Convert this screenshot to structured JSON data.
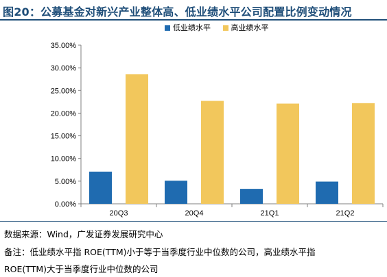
{
  "header": {
    "title": "图20：公募基金对新兴产业整体高、低业绩水平公司配置比例变动情况"
  },
  "colors": {
    "low": "#1f6bb0",
    "high": "#f2c75c",
    "title": "#1f4e79"
  },
  "chart_data": {
    "type": "bar",
    "title": "",
    "xlabel": "",
    "ylabel": "",
    "categories": [
      "20Q3",
      "20Q4",
      "21Q1",
      "21Q2"
    ],
    "series": [
      {
        "name": "低业绩水平",
        "values": [
          7.1,
          5.1,
          3.3,
          4.9
        ]
      },
      {
        "name": "高业绩水平",
        "values": [
          28.6,
          22.7,
          22.1,
          22.2
        ]
      }
    ],
    "ylim": [
      0,
      35
    ],
    "yticks": [
      "0.00%",
      "5.00%",
      "10.00%",
      "15.00%",
      "20.00%",
      "25.00%",
      "30.00%",
      "35.00%"
    ],
    "grid": false,
    "legend": "top"
  },
  "footer": {
    "source": "数据来源：Wind，广发证券发展研究中心",
    "note_line1": "备注：低业绩水平指 ROE(TTM)小于等于当季度行业中位数的公司，高业绩水平指",
    "note_line2": "ROE(TTM)大于当季度行业中位数的公司"
  }
}
